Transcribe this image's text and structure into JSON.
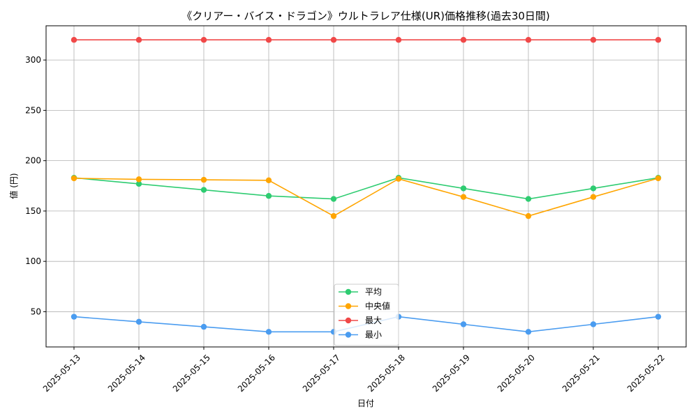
{
  "chart_data": {
    "type": "line",
    "title": "《クリアー・バイス・ドラゴン》ウルトラレア仕様(UR)価格推移(過去30日間)",
    "xlabel": "日付",
    "ylabel": "値 (円)",
    "categories": [
      "2025-05-13",
      "2025-05-14",
      "2025-05-15",
      "2025-05-16",
      "2025-05-17",
      "2025-05-18",
      "2025-05-19",
      "2025-05-20",
      "2025-05-21",
      "2025-05-22"
    ],
    "ylim": [
      15,
      334
    ],
    "yticks": [
      50,
      100,
      150,
      200,
      250,
      300
    ],
    "grid": true,
    "legend_position": "lower center",
    "series": [
      {
        "name": "平均",
        "color": "#2ecc71",
        "values": [
          183,
          177,
          171,
          165,
          162,
          183,
          172.5,
          162,
          172.5,
          183
        ]
      },
      {
        "name": "中央値",
        "color": "#ffa500",
        "values": [
          182.5,
          181.5,
          181,
          180.5,
          145,
          182,
          164,
          145,
          164,
          182.5
        ]
      },
      {
        "name": "最大",
        "color": "#f04848",
        "values": [
          320,
          320,
          320,
          320,
          320,
          320,
          320,
          320,
          320,
          320
        ]
      },
      {
        "name": "最小",
        "color": "#4a9cf0",
        "values": [
          45,
          40,
          35,
          30,
          30,
          45,
          37.5,
          30,
          37.5,
          45
        ]
      }
    ]
  }
}
